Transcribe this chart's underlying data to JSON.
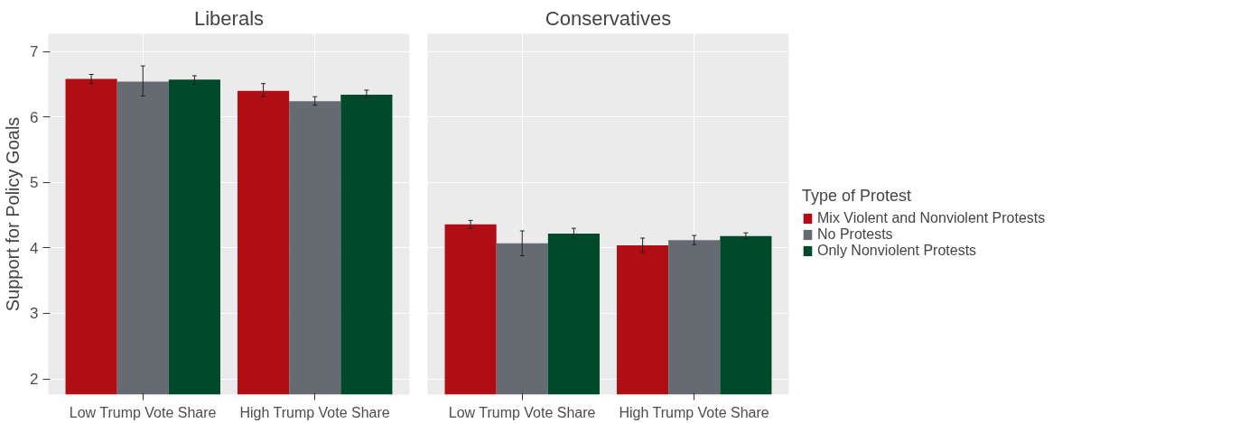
{
  "chart_data": [
    {
      "type": "bar",
      "title": "Liberals",
      "ylabel": "Support for Policy Goals",
      "categories": [
        "Low Trump Vote Share",
        "High Trump Vote Share"
      ],
      "ylim": [
        1.76,
        7.27
      ],
      "yticks": [
        2,
        3,
        4,
        5,
        6,
        7
      ],
      "grid": true,
      "series": [
        {
          "color": "#b00d14",
          "values": [
            6.58,
            6.4
          ],
          "errors": [
            [
              6.51,
              6.65
            ],
            [
              6.31,
              6.51
            ]
          ]
        },
        {
          "color": "#656b71",
          "values": [
            6.54,
            6.24
          ],
          "errors": [
            [
              6.32,
              6.78
            ],
            [
              6.18,
              6.31
            ]
          ]
        },
        {
          "color": "#004a2c",
          "values": [
            6.57,
            6.34
          ],
          "errors": [
            [
              6.5,
              6.63
            ],
            [
              6.3,
              6.41
            ]
          ]
        }
      ]
    },
    {
      "type": "bar",
      "title": "Conservatives",
      "legend_title": "Type of Protest",
      "categories": [
        "Low Trump Vote Share",
        "High Trump Vote Share"
      ],
      "ylim": [
        1.76,
        7.27
      ],
      "yticks": [
        2,
        3,
        4,
        5,
        6,
        7
      ],
      "grid": true,
      "legend": "right",
      "tick_labels": "x",
      "series": [
        {
          "name": "Mix Violent and Nonviolent Protests",
          "color": "#b00d14",
          "values": [
            4.36,
            4.04
          ],
          "errors": [
            [
              4.3,
              4.42
            ],
            [
              3.93,
              4.15
            ]
          ]
        },
        {
          "name": "No Protests",
          "color": "#656b71",
          "values": [
            4.07,
            4.12
          ],
          "errors": [
            [
              3.88,
              4.26
            ],
            [
              4.05,
              4.19
            ]
          ]
        },
        {
          "name": "Only Nonviolent Protests",
          "color": "#004a2c",
          "values": [
            4.22,
            4.18
          ],
          "errors": [
            [
              4.15,
              4.3
            ],
            [
              4.14,
              4.23
            ]
          ]
        }
      ]
    }
  ]
}
